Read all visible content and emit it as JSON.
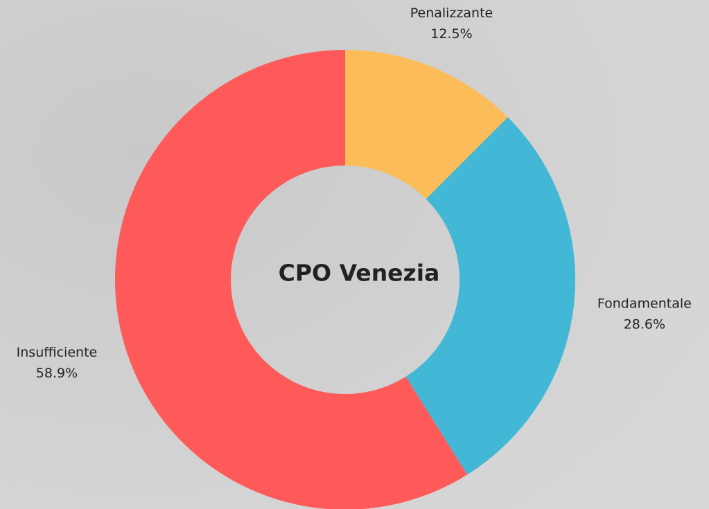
{
  "chart_data": {
    "type": "donut",
    "center_label": "CPO Venezia",
    "categories": [
      "Penalizzante",
      "Fondamentale",
      "Insufficiente"
    ],
    "values": [
      12.5,
      28.6,
      58.9
    ],
    "value_labels": [
      "12.5%",
      "28.6%",
      "58.9%"
    ],
    "colors": [
      "#fdbc5a",
      "#43b8d6",
      "#fe5a5a"
    ]
  }
}
